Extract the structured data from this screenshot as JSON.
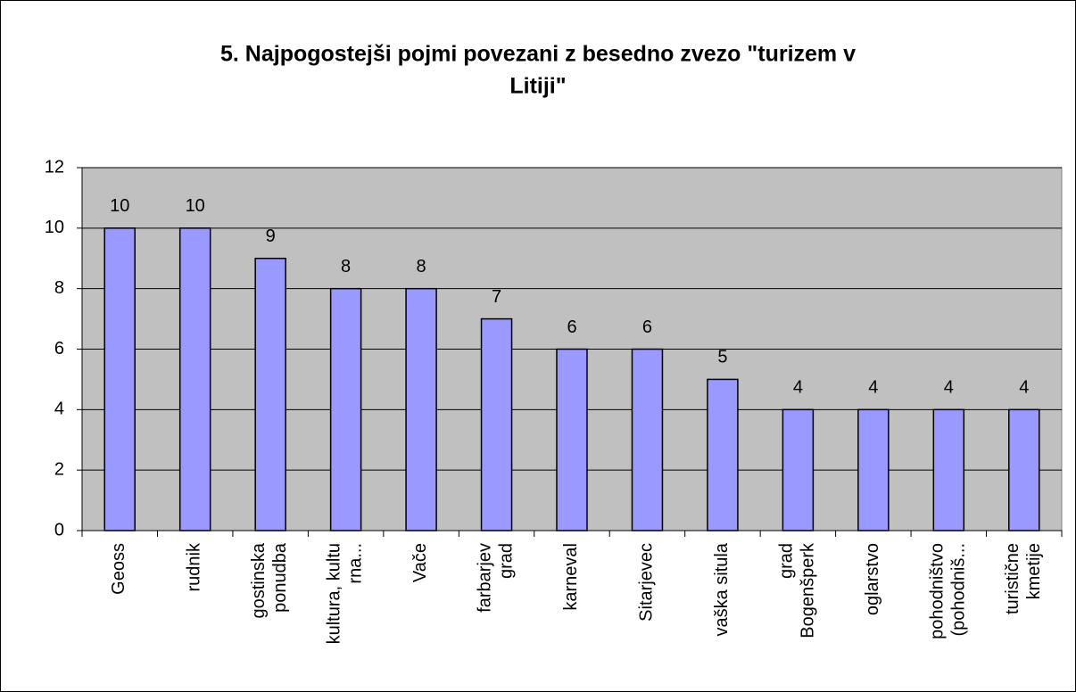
{
  "chart_data": {
    "type": "bar",
    "title": [
      "5. Najpogostejši pojmi povezani z besedno zvezo \"turizem v",
      "Litiji\""
    ],
    "categories": [
      "Geoss",
      "rudnik",
      "gostinska\nponudba",
      "kultura, kultu\nrna...",
      "Vače",
      "farbarjev\ngrad",
      "karneval",
      "Sitarjevec",
      "vaška situla",
      "grad\nBogenšperk",
      "oglarstvo",
      "pohodništvo\n(pohodniš...",
      "turistične\nkmetije"
    ],
    "values": [
      10,
      10,
      9,
      8,
      8,
      7,
      6,
      6,
      5,
      4,
      4,
      4,
      4
    ],
    "color": "#9999ff",
    "ylim": [
      0,
      12
    ],
    "yticks": [
      0,
      2,
      4,
      6,
      8,
      10,
      12
    ],
    "grid": true
  }
}
